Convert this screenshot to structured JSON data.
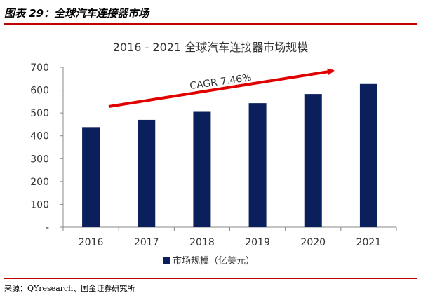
{
  "figure": {
    "label": "图表 29：全球汽车连接器市场",
    "source": "来源：QYresearch、国金证券研究所"
  },
  "chart_data": {
    "type": "bar",
    "title": "2016 - 2021 全球汽车连接器市场规模",
    "categories": [
      "2016",
      "2017",
      "2018",
      "2019",
      "2020",
      "2021"
    ],
    "series": [
      {
        "name": "市场规模（亿美元）",
        "values": [
          438,
          470,
          505,
          543,
          583,
          627
        ]
      }
    ],
    "ylim": [
      0,
      700
    ],
    "yticks": [
      0,
      100,
      200,
      300,
      400,
      500,
      600,
      700
    ],
    "ytick_labels": [
      "-",
      "100",
      "200",
      "300",
      "400",
      "500",
      "600",
      "700"
    ],
    "annotation": "CAGR 7.46%",
    "legend_position": "bottom",
    "bar_color": "#0a1f5c",
    "arrow_color": "#e00000",
    "grid": false
  }
}
